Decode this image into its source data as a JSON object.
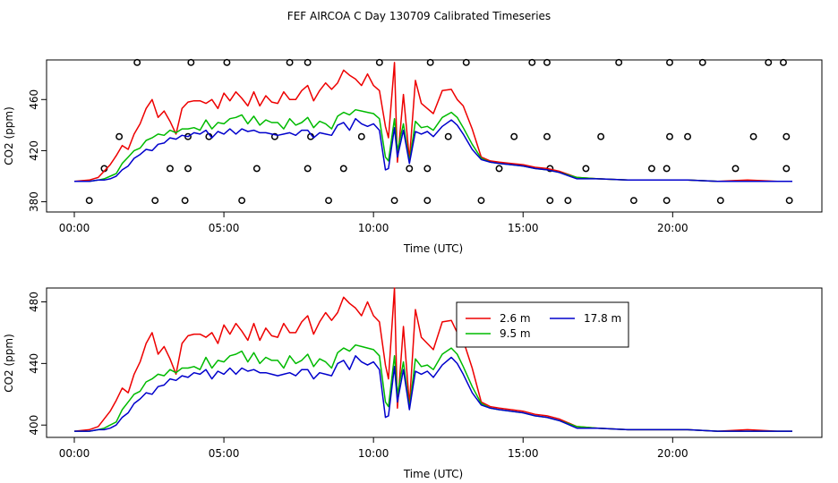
{
  "title": "FEF AIRCOA C  Day 130709  Calibrated Timeseries",
  "series_colors": {
    "s1": "#ee0000",
    "s2": "#00bb00",
    "s3": "#0000cc"
  },
  "chart_data": [
    {
      "type": "line",
      "panel": "top",
      "xlabel": "Time (UTC)",
      "ylabel": "CO2 (ppm)",
      "xlim": [
        0,
        24
      ],
      "ylim": [
        372,
        491
      ],
      "xticks": [
        0,
        5,
        10,
        15,
        20
      ],
      "xtick_labels": [
        "00:00",
        "05:00",
        "10:00",
        "15:00",
        "20:00"
      ],
      "yticks": [
        380,
        420,
        460
      ],
      "ytick_labels": [
        "380",
        "420",
        "460"
      ],
      "series": [
        {
          "name": "2.6 m",
          "color_key": "s1",
          "x": [
            0,
            0.5,
            0.8,
            1.0,
            1.2,
            1.4,
            1.6,
            1.8,
            2.0,
            2.2,
            2.4,
            2.6,
            2.8,
            3.0,
            3.2,
            3.4,
            3.6,
            3.8,
            4.0,
            4.2,
            4.4,
            4.6,
            4.8,
            5.0,
            5.2,
            5.4,
            5.6,
            5.8,
            6.0,
            6.2,
            6.4,
            6.6,
            6.8,
            7.0,
            7.2,
            7.4,
            7.6,
            7.8,
            8.0,
            8.2,
            8.4,
            8.6,
            8.8,
            9.0,
            9.2,
            9.4,
            9.6,
            9.8,
            10.0,
            10.2,
            10.4,
            10.5,
            10.7,
            10.8,
            11.0,
            11.2,
            11.4,
            11.6,
            11.8,
            12.0,
            12.3,
            12.6,
            12.8,
            13.0,
            13.3,
            13.6,
            13.9,
            14.2,
            14.6,
            15.0,
            15.4,
            15.8,
            16.2,
            16.8,
            17.5,
            18.5,
            19.5,
            20.5,
            21.5,
            22.5,
            23.5,
            24.0
          ],
          "values": [
            396,
            397,
            399,
            404,
            409,
            416,
            424,
            421,
            433,
            441,
            453,
            460,
            446,
            451,
            443,
            433,
            453,
            458,
            459,
            459,
            457,
            460,
            453,
            465,
            459,
            466,
            461,
            455,
            466,
            455,
            463,
            458,
            457,
            466,
            460,
            460,
            467,
            471,
            459,
            467,
            473,
            468,
            473,
            483,
            479,
            476,
            471,
            480,
            471,
            467,
            439,
            430,
            489,
            411,
            464,
            413,
            475,
            457,
            453,
            449,
            467,
            468,
            460,
            455,
            437,
            415,
            412,
            411,
            410,
            409,
            407,
            406,
            404,
            399,
            398,
            397,
            397,
            397,
            396,
            397,
            396,
            396
          ]
        },
        {
          "name": "9.5 m",
          "color_key": "s2",
          "x": [
            0,
            0.5,
            0.8,
            1.0,
            1.2,
            1.4,
            1.6,
            1.8,
            2.0,
            2.2,
            2.4,
            2.6,
            2.8,
            3.0,
            3.2,
            3.4,
            3.6,
            3.8,
            4.0,
            4.2,
            4.4,
            4.6,
            4.8,
            5.0,
            5.2,
            5.4,
            5.6,
            5.8,
            6.0,
            6.2,
            6.4,
            6.6,
            6.8,
            7.0,
            7.2,
            7.4,
            7.6,
            7.8,
            8.0,
            8.2,
            8.4,
            8.6,
            8.8,
            9.0,
            9.2,
            9.4,
            9.6,
            9.8,
            10.0,
            10.2,
            10.4,
            10.5,
            10.7,
            10.8,
            11.0,
            11.2,
            11.4,
            11.6,
            11.8,
            12.0,
            12.3,
            12.6,
            12.8,
            13.0,
            13.3,
            13.6,
            13.9,
            14.2,
            14.6,
            15.0,
            15.4,
            15.8,
            16.2,
            16.8,
            17.5,
            18.5,
            19.5,
            20.5,
            21.5,
            22.5,
            23.5,
            24.0
          ],
          "values": [
            396,
            396,
            397,
            398,
            400,
            402,
            410,
            415,
            420,
            422,
            428,
            430,
            433,
            432,
            436,
            434,
            437,
            437,
            438,
            436,
            444,
            437,
            442,
            441,
            445,
            446,
            448,
            441,
            447,
            440,
            444,
            442,
            442,
            437,
            445,
            440,
            442,
            446,
            438,
            443,
            441,
            437,
            447,
            450,
            448,
            452,
            451,
            450,
            449,
            445,
            415,
            412,
            445,
            420,
            441,
            411,
            443,
            438,
            439,
            436,
            446,
            450,
            446,
            438,
            425,
            414,
            411,
            410,
            409,
            408,
            406,
            405,
            403,
            399,
            398,
            397,
            397,
            397,
            396,
            396,
            396,
            396
          ]
        },
        {
          "name": "17.8 m",
          "color_key": "s3",
          "x": [
            0,
            0.5,
            0.8,
            1.0,
            1.2,
            1.4,
            1.6,
            1.8,
            2.0,
            2.2,
            2.4,
            2.6,
            2.8,
            3.0,
            3.2,
            3.4,
            3.6,
            3.8,
            4.0,
            4.2,
            4.4,
            4.6,
            4.8,
            5.0,
            5.2,
            5.4,
            5.6,
            5.8,
            6.0,
            6.2,
            6.4,
            6.6,
            6.8,
            7.0,
            7.2,
            7.4,
            7.6,
            7.8,
            8.0,
            8.2,
            8.4,
            8.6,
            8.8,
            9.0,
            9.2,
            9.4,
            9.6,
            9.8,
            10.0,
            10.2,
            10.4,
            10.5,
            10.7,
            10.8,
            11.0,
            11.2,
            11.4,
            11.6,
            11.8,
            12.0,
            12.3,
            12.6,
            12.8,
            13.0,
            13.3,
            13.6,
            13.9,
            14.2,
            14.6,
            15.0,
            15.4,
            15.8,
            16.2,
            16.8,
            17.5,
            18.5,
            19.5,
            20.5,
            21.5,
            22.5,
            23.5,
            24.0
          ],
          "values": [
            396,
            396,
            397,
            397,
            398,
            400,
            405,
            408,
            414,
            417,
            421,
            420,
            425,
            426,
            430,
            429,
            432,
            431,
            434,
            433,
            436,
            430,
            435,
            433,
            437,
            433,
            437,
            435,
            436,
            434,
            434,
            433,
            432,
            433,
            434,
            432,
            436,
            436,
            430,
            434,
            433,
            432,
            440,
            442,
            436,
            445,
            441,
            439,
            441,
            436,
            405,
            406,
            438,
            415,
            436,
            410,
            435,
            433,
            435,
            431,
            439,
            444,
            440,
            433,
            421,
            413,
            411,
            410,
            409,
            408,
            406,
            405,
            403,
            398,
            398,
            397,
            397,
            397,
            396,
            396,
            396,
            396
          ]
        }
      ],
      "markers": {
        "shape": "circle",
        "points": [
          {
            "x": 0.5,
            "y": 381
          },
          {
            "x": 1.0,
            "y": 406
          },
          {
            "x": 1.5,
            "y": 431
          },
          {
            "x": 2.1,
            "y": 489
          },
          {
            "x": 2.7,
            "y": 381
          },
          {
            "x": 3.2,
            "y": 406
          },
          {
            "x": 3.7,
            "y": 381
          },
          {
            "x": 3.8,
            "y": 431
          },
          {
            "x": 3.8,
            "y": 406
          },
          {
            "x": 3.9,
            "y": 489
          },
          {
            "x": 4.5,
            "y": 431
          },
          {
            "x": 5.1,
            "y": 489
          },
          {
            "x": 5.6,
            "y": 381
          },
          {
            "x": 6.1,
            "y": 406
          },
          {
            "x": 6.7,
            "y": 431
          },
          {
            "x": 7.2,
            "y": 489
          },
          {
            "x": 7.8,
            "y": 406
          },
          {
            "x": 7.8,
            "y": 489
          },
          {
            "x": 7.9,
            "y": 431
          },
          {
            "x": 8.5,
            "y": 381
          },
          {
            "x": 9.0,
            "y": 406
          },
          {
            "x": 9.6,
            "y": 431
          },
          {
            "x": 10.2,
            "y": 489
          },
          {
            "x": 10.7,
            "y": 381
          },
          {
            "x": 11.2,
            "y": 406
          },
          {
            "x": 11.8,
            "y": 381
          },
          {
            "x": 11.8,
            "y": 406
          },
          {
            "x": 11.9,
            "y": 489
          },
          {
            "x": 12.5,
            "y": 431
          },
          {
            "x": 13.1,
            "y": 489
          },
          {
            "x": 13.6,
            "y": 381
          },
          {
            "x": 14.2,
            "y": 406
          },
          {
            "x": 14.7,
            "y": 431
          },
          {
            "x": 15.3,
            "y": 489
          },
          {
            "x": 15.8,
            "y": 489
          },
          {
            "x": 15.8,
            "y": 431
          },
          {
            "x": 15.9,
            "y": 406
          },
          {
            "x": 15.9,
            "y": 381
          },
          {
            "x": 16.5,
            "y": 381
          },
          {
            "x": 17.1,
            "y": 406
          },
          {
            "x": 17.6,
            "y": 431
          },
          {
            "x": 18.2,
            "y": 489
          },
          {
            "x": 18.7,
            "y": 381
          },
          {
            "x": 19.3,
            "y": 406
          },
          {
            "x": 19.8,
            "y": 381
          },
          {
            "x": 19.8,
            "y": 406
          },
          {
            "x": 19.9,
            "y": 431
          },
          {
            "x": 19.9,
            "y": 489
          },
          {
            "x": 20.5,
            "y": 431
          },
          {
            "x": 21.0,
            "y": 489
          },
          {
            "x": 21.6,
            "y": 381
          },
          {
            "x": 22.1,
            "y": 406
          },
          {
            "x": 22.7,
            "y": 431
          },
          {
            "x": 23.2,
            "y": 489
          },
          {
            "x": 23.7,
            "y": 489
          },
          {
            "x": 23.8,
            "y": 431
          },
          {
            "x": 23.8,
            "y": 406
          },
          {
            "x": 23.9,
            "y": 381
          }
        ]
      }
    },
    {
      "type": "line",
      "panel": "bottom",
      "xlabel": "Time (UTC)",
      "ylabel": "CO2 (ppm)",
      "xlim": [
        0,
        24
      ],
      "ylim": [
        392,
        489
      ],
      "xticks": [
        0,
        5,
        10,
        15,
        20
      ],
      "xtick_labels": [
        "00:00",
        "05:00",
        "10:00",
        "15:00",
        "20:00"
      ],
      "yticks": [
        400,
        440,
        480
      ],
      "ytick_labels": [
        "400",
        "440",
        "480"
      ],
      "legend": {
        "position": "top-right",
        "entries": [
          {
            "label": "2.6 m",
            "color_key": "s1"
          },
          {
            "label": "9.5 m",
            "color_key": "s2"
          },
          {
            "label": "17.8 m",
            "color_key": "s3"
          }
        ]
      },
      "series_ref": "same as top panel series"
    }
  ]
}
